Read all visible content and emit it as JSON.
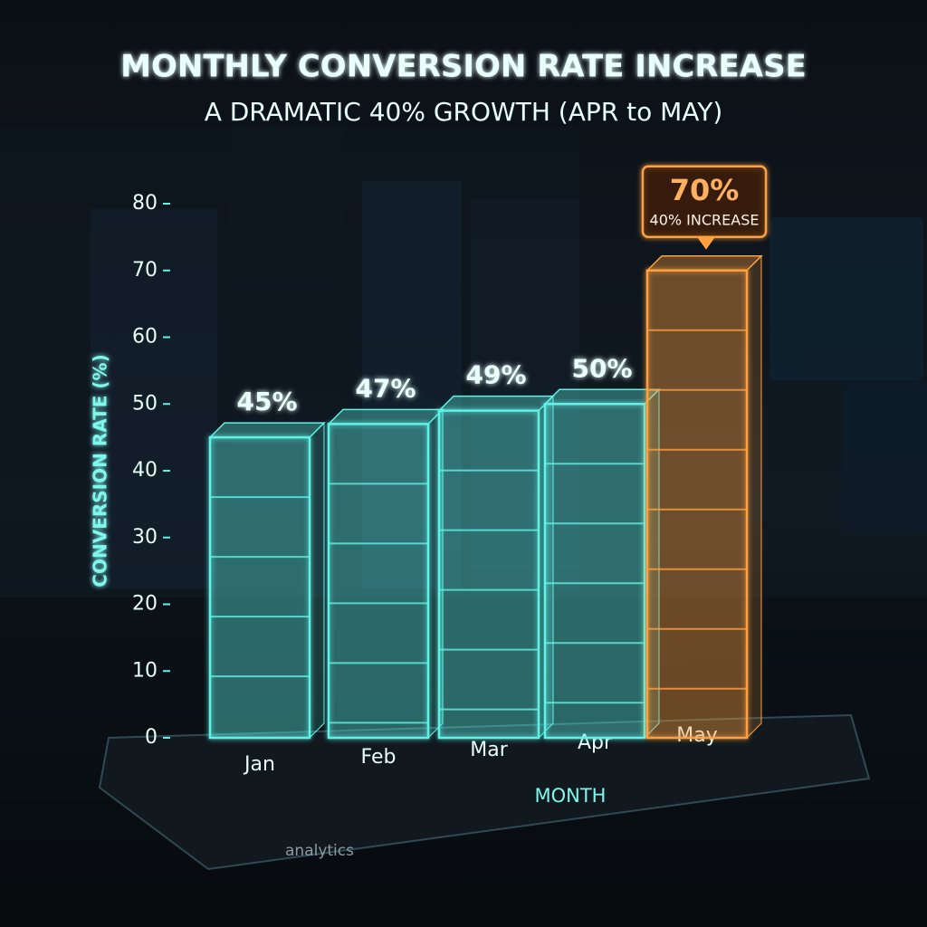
{
  "chart_data": {
    "type": "bar",
    "title": "MONTHLY CONVERSION RATE INCREASE",
    "subtitle": "A DRAMATIC 40% GROWTH (APR to MAY)",
    "y_label": "CONVERSION RATE (%)",
    "x_label": "MONTH",
    "categories": [
      "Jan",
      "Feb",
      "Mar",
      "Apr",
      "May"
    ],
    "values": [
      45,
      47,
      49,
      50,
      70
    ],
    "value_labels": [
      "45%",
      "47%",
      "49%",
      "50%",
      "70%"
    ],
    "colors": [
      "#5ff2e6",
      "#5ff2e6",
      "#5ff2e6",
      "#5ff2e6",
      "#ffa040"
    ],
    "annotation": "40% INCREASE",
    "platform_text": "analytics",
    "ylim": [
      0,
      80
    ],
    "yticks": [
      0,
      10,
      20,
      30,
      40,
      50,
      60,
      70,
      80
    ]
  }
}
